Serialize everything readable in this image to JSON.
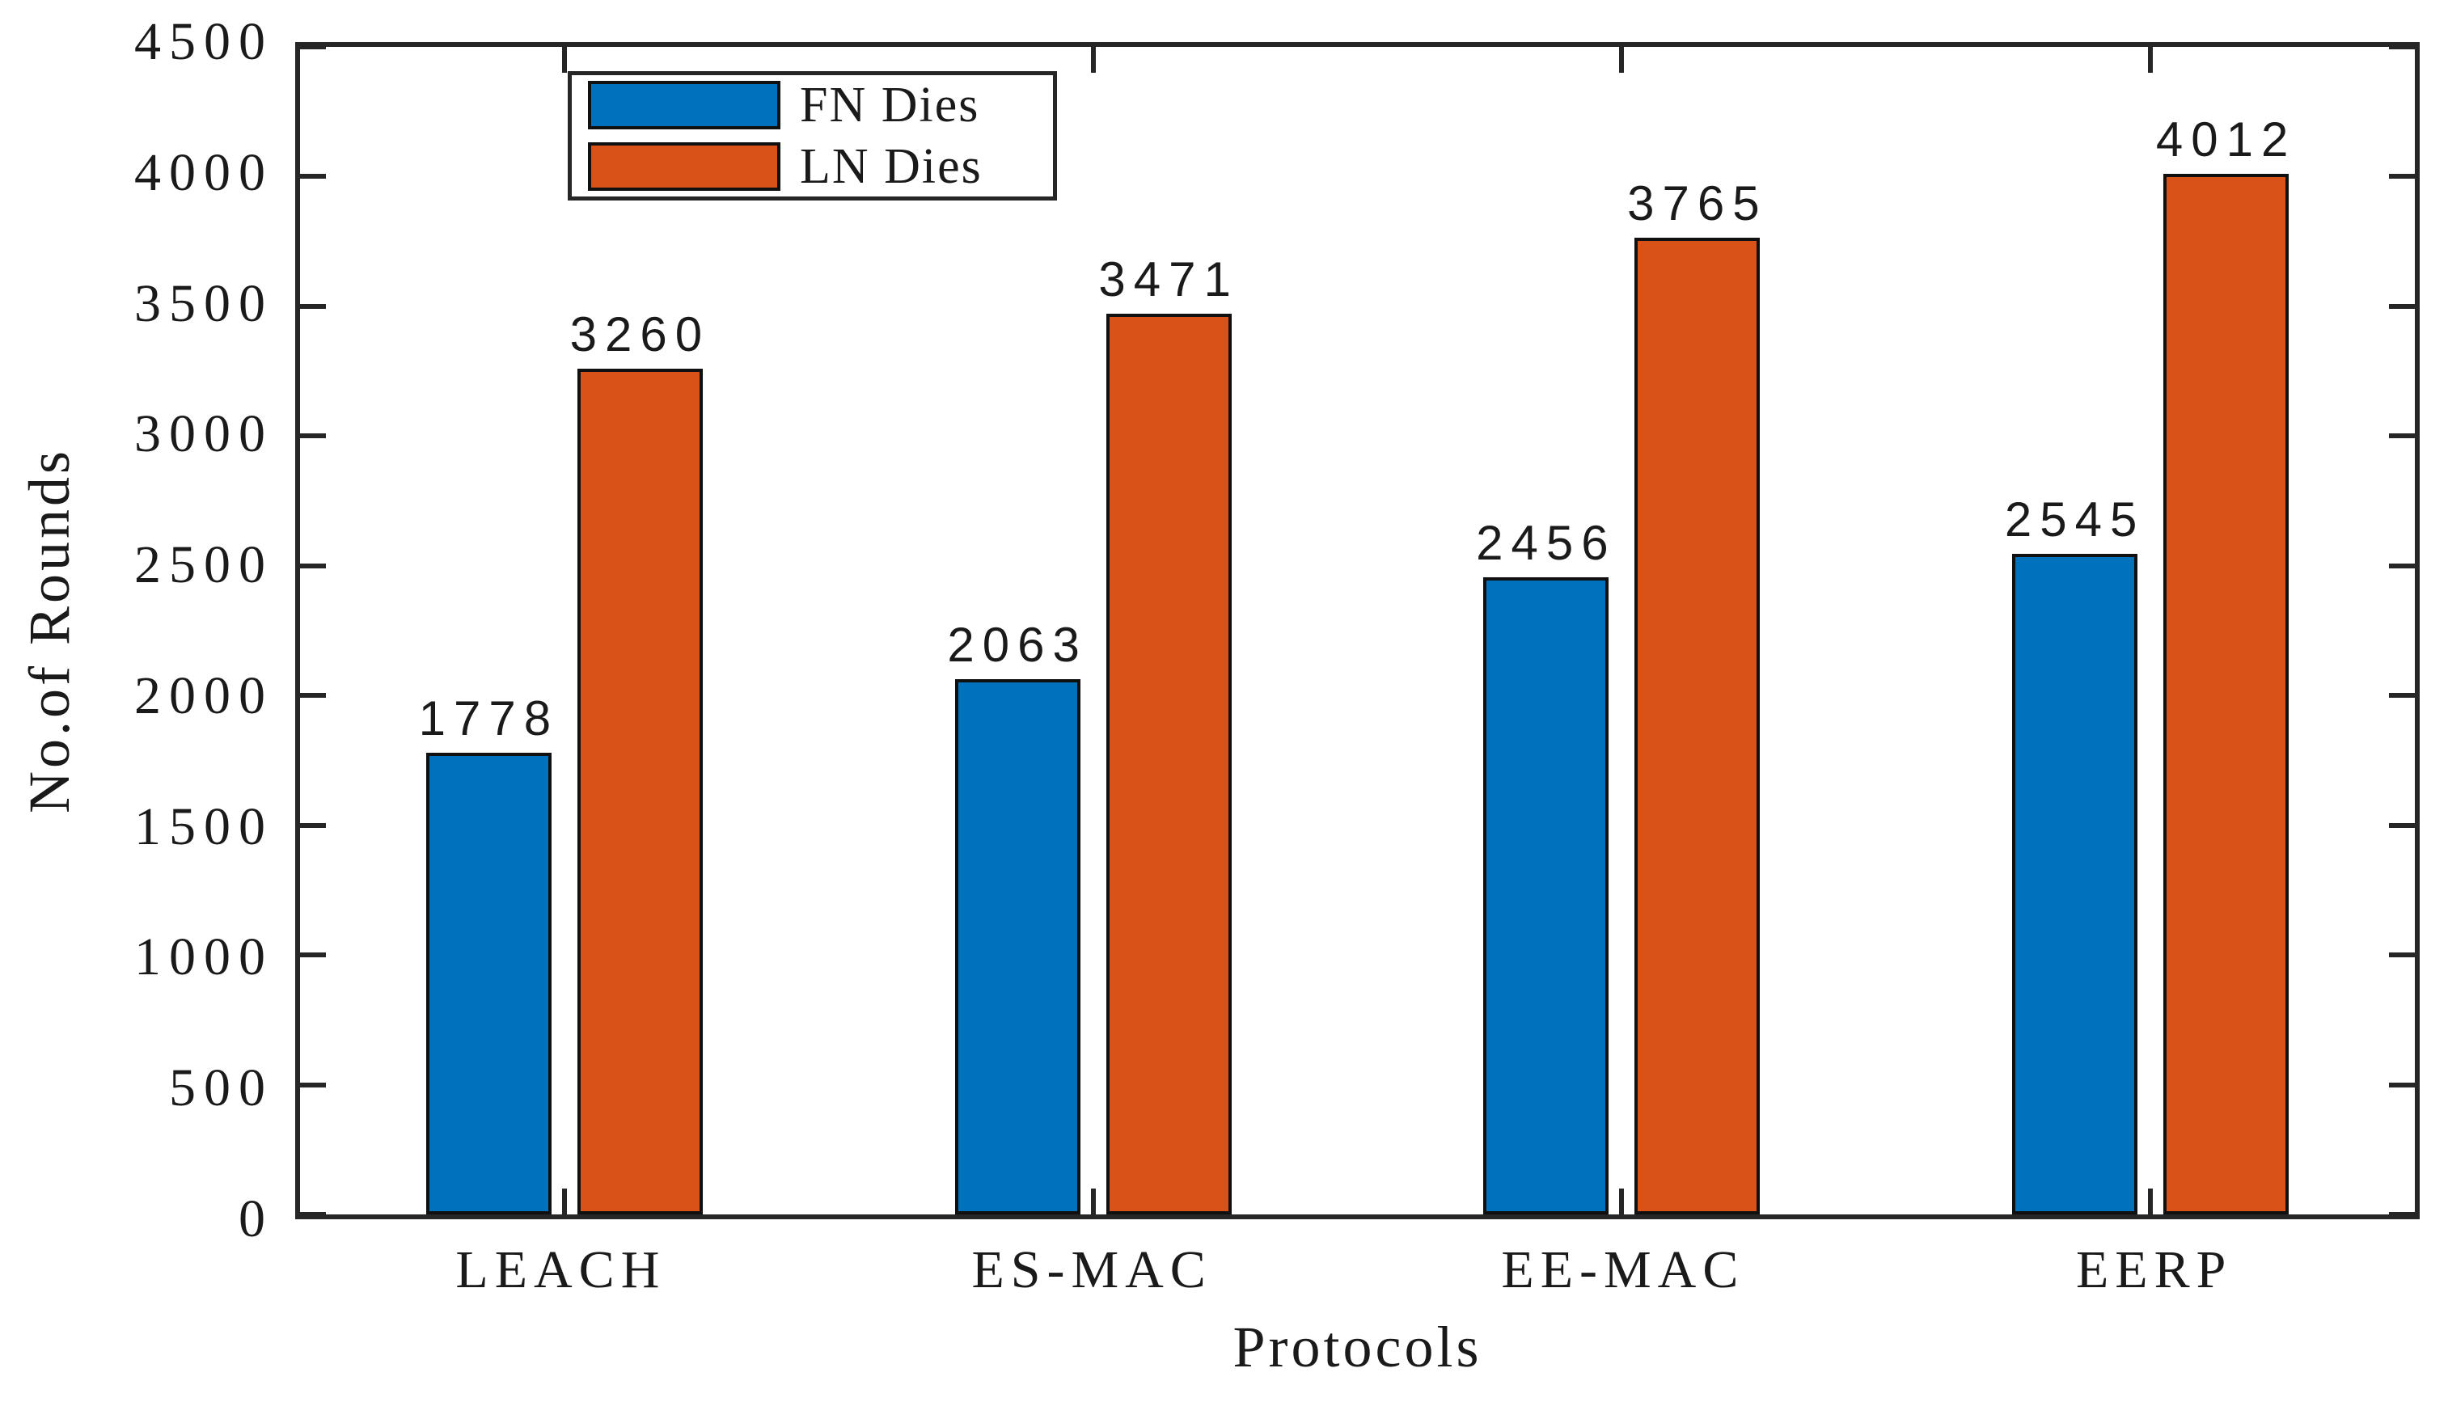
{
  "chart_data": {
    "type": "bar",
    "title": "",
    "xlabel": "Protocols",
    "ylabel": "No.of Rounds",
    "categories": [
      "LEACH",
      "ES-MAC",
      "EE-MAC",
      "EERP"
    ],
    "series": [
      {
        "name": "FN Dies",
        "color": "#0072BD",
        "values": [
          1778,
          2063,
          2456,
          2545
        ]
      },
      {
        "name": "LN Dies",
        "color": "#D95319",
        "values": [
          3260,
          3471,
          3765,
          4012
        ]
      }
    ],
    "ylim": [
      0,
      4500
    ],
    "yticks": [
      0,
      500,
      1000,
      1500,
      2000,
      2500,
      3000,
      3500,
      4000,
      4500
    ],
    "value_labels": [
      {
        "category": "LEACH",
        "fn": "1778",
        "ln": "3260"
      },
      {
        "category": "ES-MAC",
        "fn": "2063",
        "ln": "3471"
      },
      {
        "category": "EE-MAC",
        "fn": "2456",
        "ln": "3765"
      },
      {
        "category": "EERP",
        "fn": "2545",
        "ln": "4012"
      }
    ],
    "legend": {
      "position": "upper-left-inside",
      "entries": [
        "FN Dies",
        "LN Dies"
      ]
    },
    "grid": false,
    "bar_edge_color": "#101010",
    "axis_color": "#262626",
    "text_color": "#1a1a1a",
    "background_color": "#ffffff"
  }
}
